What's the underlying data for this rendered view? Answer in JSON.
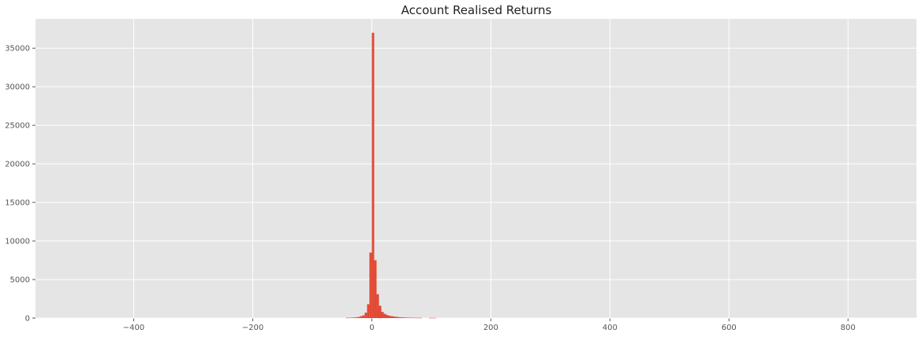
{
  "chart_data": {
    "type": "bar",
    "title": "Account Realised Returns",
    "xlabel": "",
    "ylabel": "",
    "xlim": [
      -565,
      915
    ],
    "ylim": [
      0,
      38800
    ],
    "x_ticks": [
      -400,
      -200,
      0,
      200,
      400,
      600,
      800
    ],
    "x_tick_labels": [
      "−400",
      "−200",
      "0",
      "200",
      "400",
      "600",
      "800"
    ],
    "y_ticks": [
      0,
      5000,
      10000,
      15000,
      20000,
      25000,
      30000,
      35000
    ],
    "y_tick_labels": [
      "0",
      "5000",
      "10000",
      "15000",
      "20000",
      "25000",
      "30000",
      "35000"
    ],
    "grid": true,
    "legend": "none",
    "bin_width": 4,
    "bins": [
      {
        "x": -44,
        "value": 30
      },
      {
        "x": -40,
        "value": 40
      },
      {
        "x": -36,
        "value": 60
      },
      {
        "x": -32,
        "value": 80
      },
      {
        "x": -28,
        "value": 100
      },
      {
        "x": -24,
        "value": 150
      },
      {
        "x": -20,
        "value": 250
      },
      {
        "x": -16,
        "value": 350
      },
      {
        "x": -12,
        "value": 700
      },
      {
        "x": -8,
        "value": 1800
      },
      {
        "x": -4,
        "value": 8500
      },
      {
        "x": 0,
        "value": 37000
      },
      {
        "x": 4,
        "value": 7500
      },
      {
        "x": 8,
        "value": 3100
      },
      {
        "x": 12,
        "value": 1600
      },
      {
        "x": 16,
        "value": 800
      },
      {
        "x": 20,
        "value": 550
      },
      {
        "x": 24,
        "value": 400
      },
      {
        "x": 28,
        "value": 300
      },
      {
        "x": 32,
        "value": 250
      },
      {
        "x": 36,
        "value": 200
      },
      {
        "x": 40,
        "value": 160
      },
      {
        "x": 44,
        "value": 120
      },
      {
        "x": 48,
        "value": 100
      },
      {
        "x": 52,
        "value": 80
      },
      {
        "x": 56,
        "value": 70
      },
      {
        "x": 60,
        "value": 60
      },
      {
        "x": 64,
        "value": 50
      },
      {
        "x": 68,
        "value": 45
      },
      {
        "x": 72,
        "value": 40
      },
      {
        "x": 76,
        "value": 35
      },
      {
        "x": 80,
        "value": 30
      },
      {
        "x": 96,
        "value": 25
      },
      {
        "x": 100,
        "value": 25
      },
      {
        "x": 104,
        "value": 25
      }
    ],
    "colors": {
      "bar": "#E24A33",
      "plot_background": "#E5E5E5",
      "grid": "#FFFFFF",
      "tick_label": "#555555",
      "title": "#222222"
    }
  }
}
